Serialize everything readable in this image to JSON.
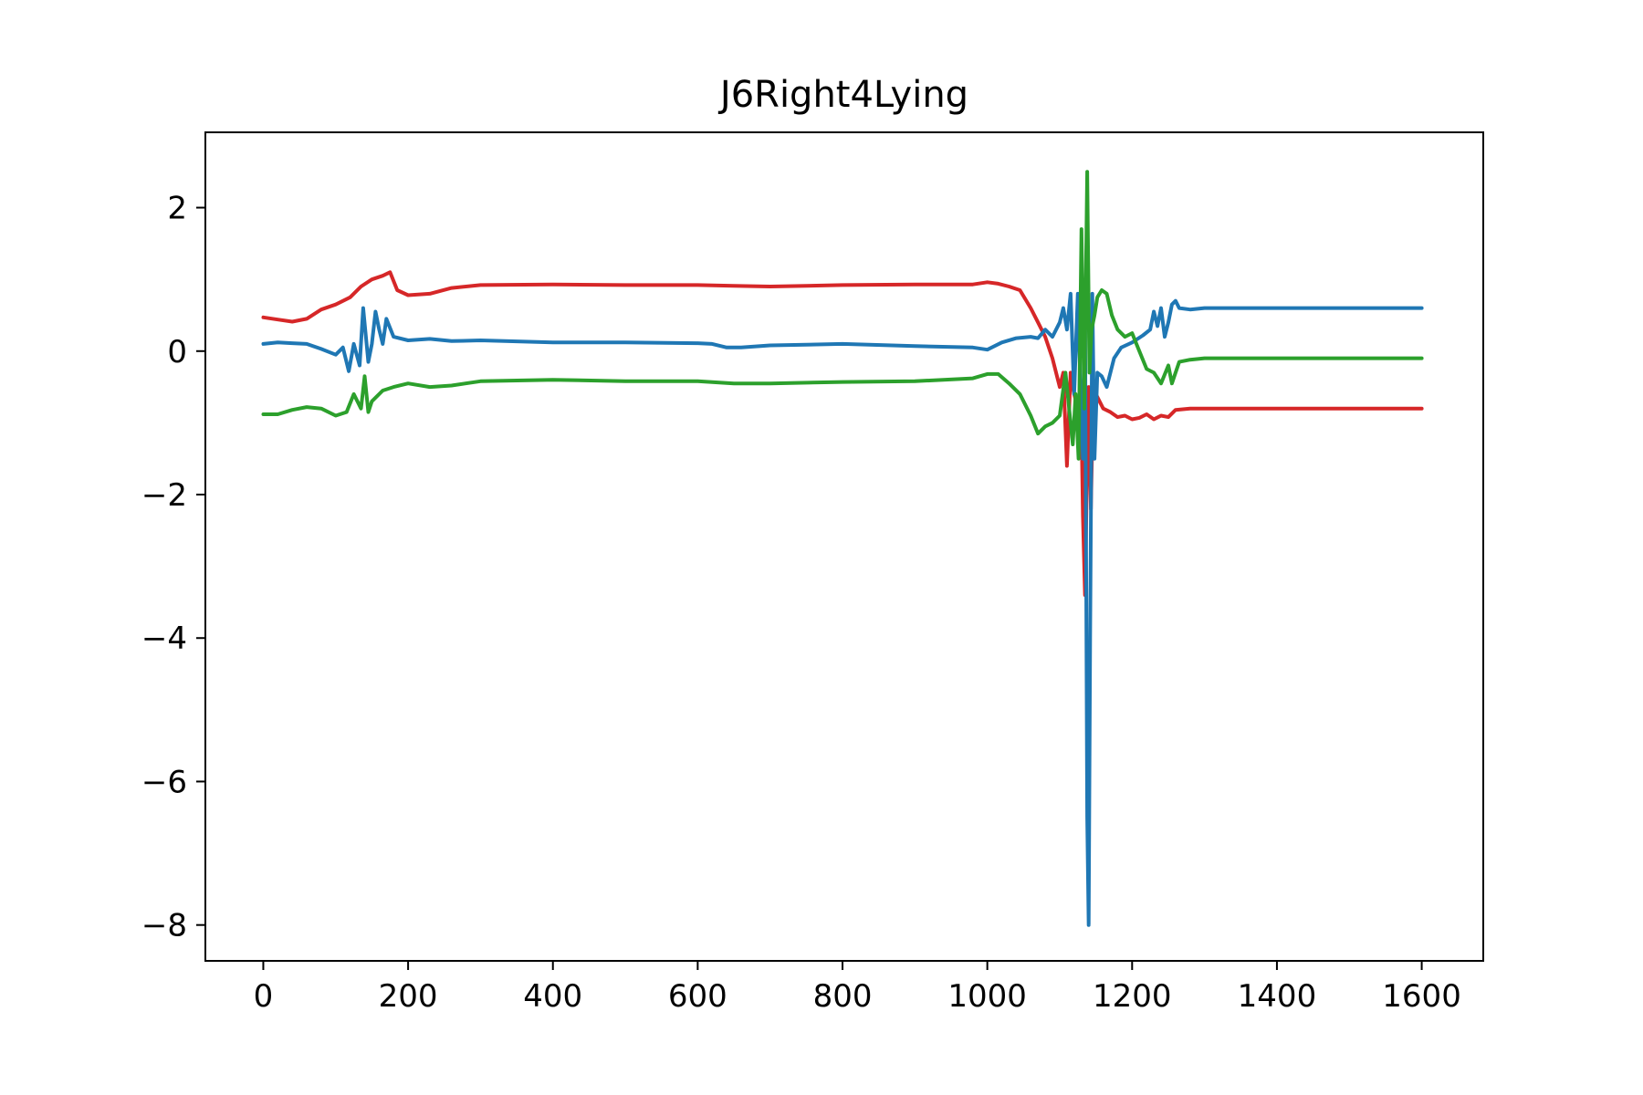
{
  "chart_data": {
    "type": "line",
    "title": "J6Right4Lying",
    "xlabel": "",
    "ylabel": "",
    "xlim": [
      -80,
      1685
    ],
    "ylim": [
      -8.5,
      3.05
    ],
    "xticks": [
      0,
      200,
      400,
      600,
      800,
      1000,
      1200,
      1400,
      1600
    ],
    "xtick_labels": [
      "0",
      "200",
      "400",
      "600",
      "800",
      "1000",
      "1200",
      "1400",
      "1600"
    ],
    "yticks": [
      2,
      0,
      -2,
      -4,
      -6,
      -8
    ],
    "ytick_labels": [
      "2",
      "0",
      "−2",
      "−4",
      "−6",
      "−8"
    ],
    "grid": false,
    "legend": "none",
    "series": [
      {
        "color": "#d62728",
        "x": [
          0,
          20,
          40,
          60,
          80,
          100,
          120,
          135,
          150,
          165,
          175,
          185,
          200,
          230,
          260,
          300,
          400,
          500,
          600,
          650,
          700,
          800,
          900,
          980,
          1000,
          1015,
          1030,
          1045,
          1060,
          1070,
          1080,
          1090,
          1095,
          1100,
          1105,
          1110,
          1115,
          1120,
          1125,
          1130,
          1132,
          1135,
          1138,
          1140,
          1143,
          1146,
          1150,
          1155,
          1160,
          1170,
          1180,
          1190,
          1200,
          1210,
          1220,
          1230,
          1240,
          1250,
          1260,
          1280,
          1300,
          1400,
          1500,
          1600
        ],
        "y": [
          0.47,
          0.44,
          0.41,
          0.45,
          0.58,
          0.65,
          0.75,
          0.9,
          1.0,
          1.05,
          1.1,
          0.85,
          0.78,
          0.8,
          0.88,
          0.92,
          0.93,
          0.92,
          0.92,
          0.91,
          0.9,
          0.92,
          0.93,
          0.93,
          0.96,
          0.94,
          0.9,
          0.85,
          0.6,
          0.4,
          0.2,
          -0.1,
          -0.3,
          -0.5,
          -0.3,
          -1.6,
          -0.3,
          -0.6,
          -0.8,
          -1.0,
          -2.3,
          -3.4,
          -1.5,
          -0.5,
          -2.2,
          -0.7,
          -0.6,
          -0.7,
          -0.8,
          -0.85,
          -0.92,
          -0.9,
          -0.95,
          -0.93,
          -0.88,
          -0.95,
          -0.9,
          -0.92,
          -0.82,
          -0.8,
          -0.8,
          -0.8,
          -0.8,
          -0.8
        ]
      },
      {
        "color": "#1f77b4",
        "x": [
          0,
          20,
          40,
          60,
          80,
          100,
          110,
          118,
          125,
          133,
          138,
          145,
          150,
          155,
          160,
          165,
          170,
          180,
          200,
          230,
          260,
          300,
          400,
          500,
          600,
          620,
          640,
          660,
          700,
          800,
          900,
          980,
          1000,
          1020,
          1040,
          1060,
          1070,
          1080,
          1090,
          1100,
          1105,
          1110,
          1115,
          1120,
          1125,
          1128,
          1132,
          1135,
          1138,
          1140,
          1142,
          1145,
          1148,
          1152,
          1158,
          1165,
          1175,
          1185,
          1200,
          1215,
          1225,
          1230,
          1235,
          1240,
          1245,
          1250,
          1255,
          1260,
          1265,
          1280,
          1300,
          1400,
          1500,
          1600
        ],
        "y": [
          0.1,
          0.12,
          0.11,
          0.1,
          0.03,
          -0.05,
          0.05,
          -0.28,
          0.1,
          -0.2,
          0.6,
          -0.15,
          0.1,
          0.55,
          0.3,
          0.1,
          0.45,
          0.2,
          0.15,
          0.17,
          0.14,
          0.15,
          0.12,
          0.12,
          0.11,
          0.1,
          0.05,
          0.05,
          0.08,
          0.1,
          0.07,
          0.05,
          0.02,
          0.12,
          0.18,
          0.2,
          0.18,
          0.3,
          0.2,
          0.4,
          0.6,
          0.3,
          0.8,
          -0.6,
          0.8,
          -0.3,
          -1.5,
          0.7,
          -6.5,
          -8.0,
          -4.0,
          0.8,
          -1.5,
          -0.3,
          -0.35,
          -0.5,
          -0.1,
          0.05,
          0.12,
          0.22,
          0.3,
          0.55,
          0.35,
          0.6,
          0.2,
          0.4,
          0.65,
          0.7,
          0.6,
          0.58,
          0.6,
          0.6,
          0.6,
          0.6
        ]
      },
      {
        "color": "#2ca02c",
        "x": [
          0,
          20,
          40,
          60,
          80,
          100,
          115,
          125,
          135,
          140,
          145,
          150,
          165,
          180,
          200,
          230,
          260,
          300,
          400,
          500,
          600,
          650,
          700,
          800,
          900,
          980,
          1000,
          1015,
          1030,
          1045,
          1060,
          1070,
          1080,
          1090,
          1100,
          1108,
          1112,
          1118,
          1122,
          1126,
          1130,
          1134,
          1138,
          1141,
          1144,
          1148,
          1152,
          1158,
          1165,
          1172,
          1180,
          1190,
          1200,
          1210,
          1220,
          1230,
          1240,
          1250,
          1255,
          1260,
          1265,
          1280,
          1300,
          1400,
          1500,
          1600
        ],
        "y": [
          -0.88,
          -0.88,
          -0.82,
          -0.78,
          -0.8,
          -0.9,
          -0.85,
          -0.6,
          -0.8,
          -0.35,
          -0.85,
          -0.7,
          -0.55,
          -0.5,
          -0.45,
          -0.5,
          -0.48,
          -0.42,
          -0.4,
          -0.42,
          -0.42,
          -0.45,
          -0.45,
          -0.43,
          -0.42,
          -0.38,
          -0.32,
          -0.32,
          -0.45,
          -0.6,
          -0.9,
          -1.15,
          -1.05,
          -1.0,
          -0.9,
          -0.3,
          -0.7,
          -1.3,
          -0.6,
          -1.5,
          1.7,
          -0.8,
          2.5,
          -0.3,
          0.3,
          0.5,
          0.75,
          0.85,
          0.8,
          0.5,
          0.3,
          0.2,
          0.25,
          0.0,
          -0.25,
          -0.3,
          -0.45,
          -0.2,
          -0.45,
          -0.3,
          -0.15,
          -0.12,
          -0.1,
          -0.1,
          -0.1,
          -0.1
        ]
      }
    ]
  }
}
